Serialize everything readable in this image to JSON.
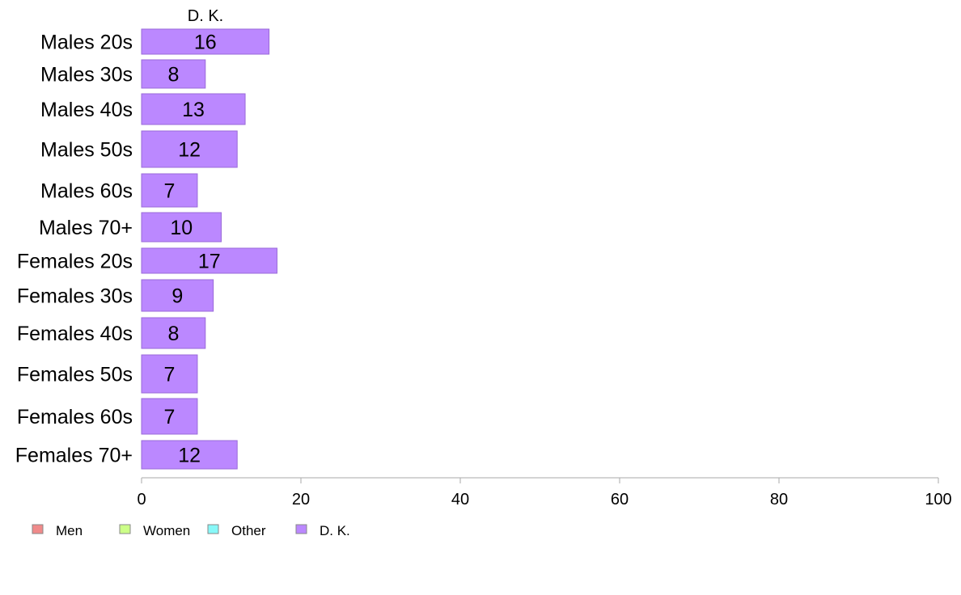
{
  "chart_data": {
    "type": "bar",
    "orientation": "horizontal",
    "series_title": "D. K.",
    "categories": [
      "Males 20s",
      "Males 30s",
      "Males 40s",
      "Males 50s",
      "Males 60s",
      "Males 70+",
      "Females 20s",
      "Females 30s",
      "Females 40s",
      "Females 50s",
      "Females 60s",
      "Females 70+"
    ],
    "series": [
      {
        "name": "D. K.",
        "color": "#bb88ff",
        "values": [
          16,
          8,
          13,
          12,
          7,
          10,
          17,
          9,
          8,
          7,
          7,
          12
        ]
      }
    ],
    "xlim": [
      0,
      100
    ],
    "xticks": [
      0,
      20,
      40,
      60,
      80,
      100
    ],
    "grid": false,
    "legend": {
      "placement": "bottom-left",
      "entries": [
        {
          "label": "Men",
          "color": "#f08a8a"
        },
        {
          "label": "Women",
          "color": "#ccff88"
        },
        {
          "label": "Other",
          "color": "#88f8f8"
        },
        {
          "label": "D. K.",
          "color": "#bb88ff"
        }
      ]
    }
  }
}
